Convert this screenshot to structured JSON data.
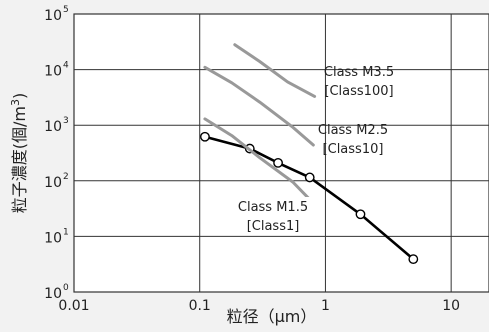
{
  "chart_data": {
    "type": "line",
    "xlabel": "粒径（μm）",
    "ylabel": "粒子濃度(個/m3)",
    "xscale": "log",
    "yscale": "log",
    "xlim": [
      0.01,
      20
    ],
    "ylim": [
      1,
      100000
    ],
    "grid": true,
    "x_ticks": [
      "0.01",
      "0.1",
      "1",
      "10"
    ],
    "y_ticks": [
      {
        "base": "10",
        "exp": "0"
      },
      {
        "base": "10",
        "exp": "1"
      },
      {
        "base": "10",
        "exp": "2"
      },
      {
        "base": "10",
        "exp": "3"
      },
      {
        "base": "10",
        "exp": "4"
      },
      {
        "base": "10",
        "exp": "5"
      }
    ],
    "series": [
      {
        "name": "",
        "style": "black-with-markers",
        "points": [
          [
            0.11,
            620
          ],
          [
            0.25,
            380
          ],
          [
            0.42,
            210
          ],
          [
            0.75,
            115
          ],
          [
            1.9,
            25
          ],
          [
            5.0,
            3.9
          ]
        ]
      },
      {
        "name": "Class M3.5 [Class100]",
        "style": "gray",
        "points": [
          [
            0.19,
            28000
          ],
          [
            0.3,
            14000
          ],
          [
            0.5,
            6000
          ],
          [
            0.82,
            3300
          ]
        ]
      },
      {
        "name": "Class M2.5 [Class10]",
        "style": "gray",
        "points": [
          [
            0.11,
            11000
          ],
          [
            0.18,
            5800
          ],
          [
            0.3,
            2600
          ],
          [
            0.55,
            920
          ],
          [
            0.8,
            440
          ]
        ]
      },
      {
        "name": "Class M1.5 [Class1]",
        "style": "gray",
        "points": [
          [
            0.11,
            1300
          ],
          [
            0.18,
            650
          ],
          [
            0.3,
            260
          ],
          [
            0.55,
            95
          ],
          [
            0.78,
            42
          ]
        ]
      }
    ],
    "annotations": [
      {
        "series": "Class M3.5 [Class100]",
        "line1": "Class M3.5",
        "line2": "[Class100]"
      },
      {
        "series": "Class M2.5 [Class10]",
        "line1": "Class M2.5",
        "line2": "[Class10]"
      },
      {
        "series": "Class M1.5 [Class1]",
        "line1": "Class M1.5",
        "line2": "[Class1]"
      }
    ],
    "colors": {
      "background": "#f2f2f2",
      "plot_background": "#ffffff",
      "grid": "#333333",
      "class_lines": "#999999",
      "measured_line": "#000000"
    }
  }
}
